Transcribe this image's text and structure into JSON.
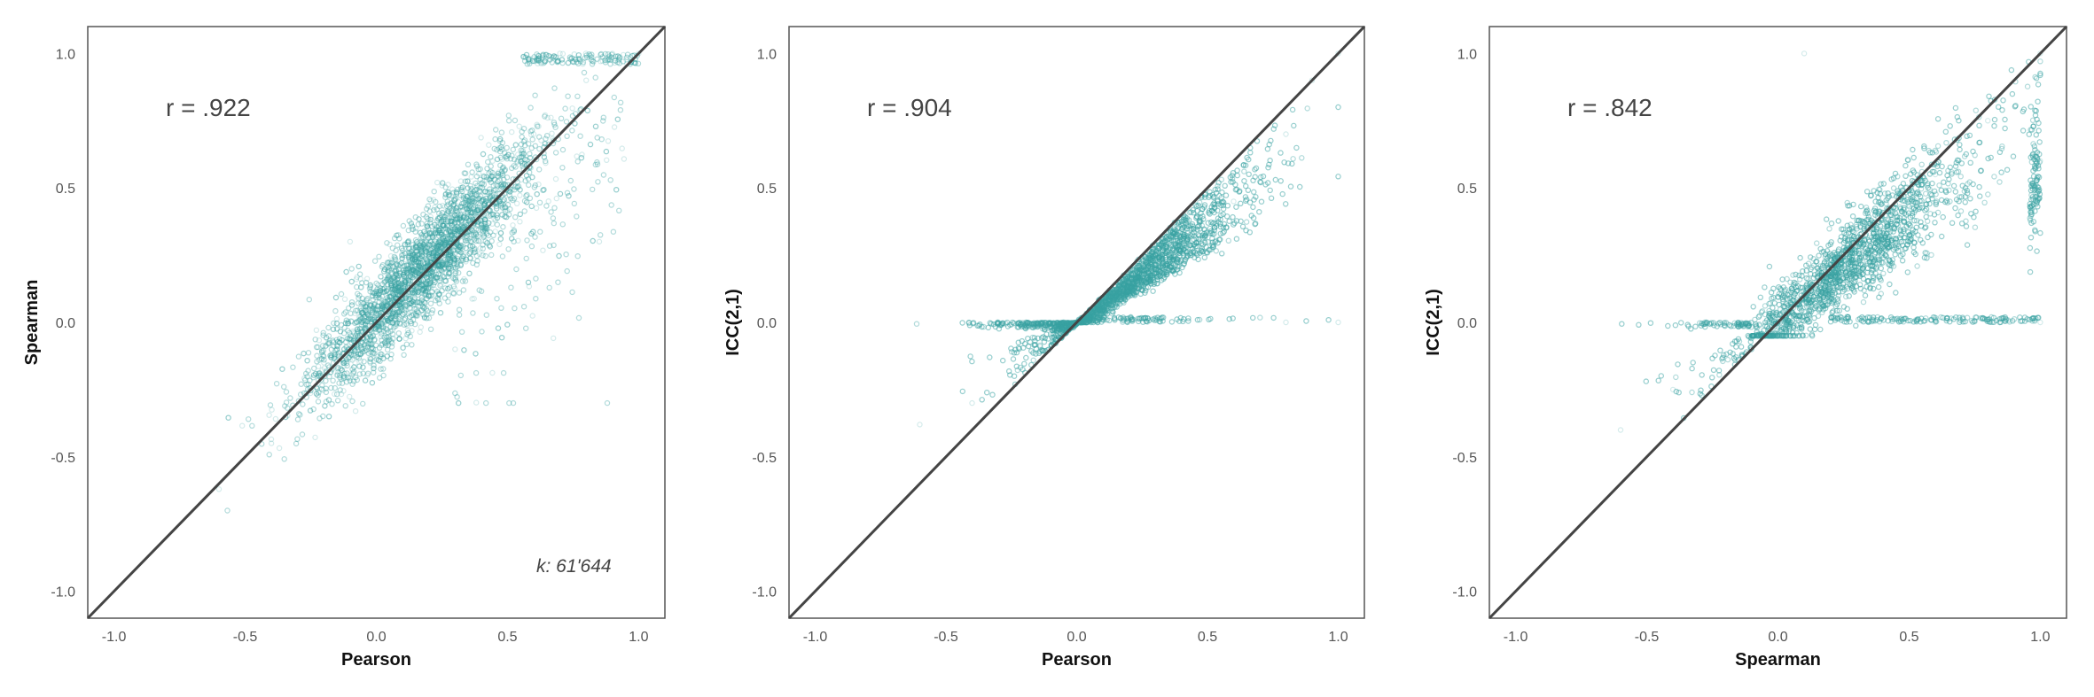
{
  "chart_data": [
    {
      "type": "scatter",
      "xlabel": "Pearson",
      "ylabel": "Spearman",
      "xlim": [
        -1.1,
        1.1
      ],
      "ylim": [
        -1.1,
        1.1
      ],
      "xticks": [
        -1.0,
        -0.5,
        0.0,
        0.5,
        1.0
      ],
      "yticks": [
        -1.0,
        -0.5,
        0.0,
        0.5,
        1.0
      ],
      "xtick_labels": [
        "-1.0",
        "-0.5",
        "0.0",
        "0.5",
        "1.0"
      ],
      "ytick_labels": [
        "-1.0",
        "-0.5",
        "0.0",
        "0.5",
        "1.0"
      ],
      "annotation": "r = .922",
      "note": "k: 61'644",
      "reference_line": "identity",
      "grid": false,
      "pattern": "spearman_vs_pearson",
      "sample_points": [
        [
          -0.6,
          -0.62
        ],
        [
          -0.4,
          -0.45
        ],
        [
          -0.2,
          -0.15
        ],
        [
          0.0,
          0.05
        ],
        [
          0.2,
          0.25
        ],
        [
          0.4,
          0.45
        ],
        [
          0.6,
          0.7
        ],
        [
          0.8,
          0.9
        ],
        [
          0.9,
          1.0
        ],
        [
          1.0,
          1.0
        ],
        [
          0.7,
          1.0
        ],
        [
          0.85,
          0.3
        ],
        [
          -0.1,
          0.3
        ],
        [
          0.3,
          -0.1
        ]
      ]
    },
    {
      "type": "scatter",
      "xlabel": "Pearson",
      "ylabel": "ICC(2,1)",
      "xlim": [
        -1.1,
        1.1
      ],
      "ylim": [
        -1.1,
        1.1
      ],
      "xticks": [
        -1.0,
        -0.5,
        0.0,
        0.5,
        1.0
      ],
      "yticks": [
        -1.0,
        -0.5,
        0.0,
        0.5,
        1.0
      ],
      "xtick_labels": [
        "-1.0",
        "-0.5",
        "0.0",
        "0.5",
        "1.0"
      ],
      "ytick_labels": [
        "-1.0",
        "-0.5",
        "0.0",
        "0.5",
        "1.0"
      ],
      "annotation": "r = .904",
      "reference_line": "identity",
      "grid": false,
      "pattern": "icc_vs_pearson",
      "sample_points": [
        [
          -0.6,
          -0.38
        ],
        [
          -0.4,
          -0.3
        ],
        [
          -0.3,
          0.0
        ],
        [
          -0.1,
          0.0
        ],
        [
          0.0,
          0.0
        ],
        [
          0.2,
          0.15
        ],
        [
          0.4,
          0.3
        ],
        [
          0.6,
          0.45
        ],
        [
          0.8,
          0.7
        ],
        [
          0.9,
          0.9
        ],
        [
          1.0,
          1.0
        ],
        [
          0.8,
          0.0
        ],
        [
          1.0,
          0.0
        ]
      ]
    },
    {
      "type": "scatter",
      "xlabel": "Spearman",
      "ylabel": "ICC(2,1)",
      "xlim": [
        -1.1,
        1.1
      ],
      "ylim": [
        -1.1,
        1.1
      ],
      "xticks": [
        -1.0,
        -0.5,
        0.0,
        0.5,
        1.0
      ],
      "yticks": [
        -1.0,
        -0.5,
        0.0,
        0.5,
        1.0
      ],
      "xtick_labels": [
        "-1.0",
        "-0.5",
        "0.0",
        "0.5",
        "1.0"
      ],
      "ytick_labels": [
        "-1.0",
        "-0.5",
        "0.0",
        "0.5",
        "1.0"
      ],
      "annotation": "r = .842",
      "reference_line": "identity",
      "grid": false,
      "pattern": "icc_vs_spearman",
      "sample_points": [
        [
          -0.6,
          -0.4
        ],
        [
          -0.4,
          -0.25
        ],
        [
          -0.2,
          0.0
        ],
        [
          0.0,
          0.0
        ],
        [
          0.2,
          0.1
        ],
        [
          0.4,
          0.35
        ],
        [
          0.6,
          0.55
        ],
        [
          0.8,
          0.75
        ],
        [
          1.0,
          1.0
        ],
        [
          1.0,
          0.6
        ],
        [
          1.0,
          0.0
        ],
        [
          0.6,
          0.0
        ],
        [
          0.1,
          1.0
        ]
      ]
    }
  ],
  "style": {
    "point_color": "#3aa5a3",
    "line_color": "#444444",
    "frame_color": "#555555",
    "point_opacity": 0.22,
    "point_count_per_panel": 5200
  }
}
